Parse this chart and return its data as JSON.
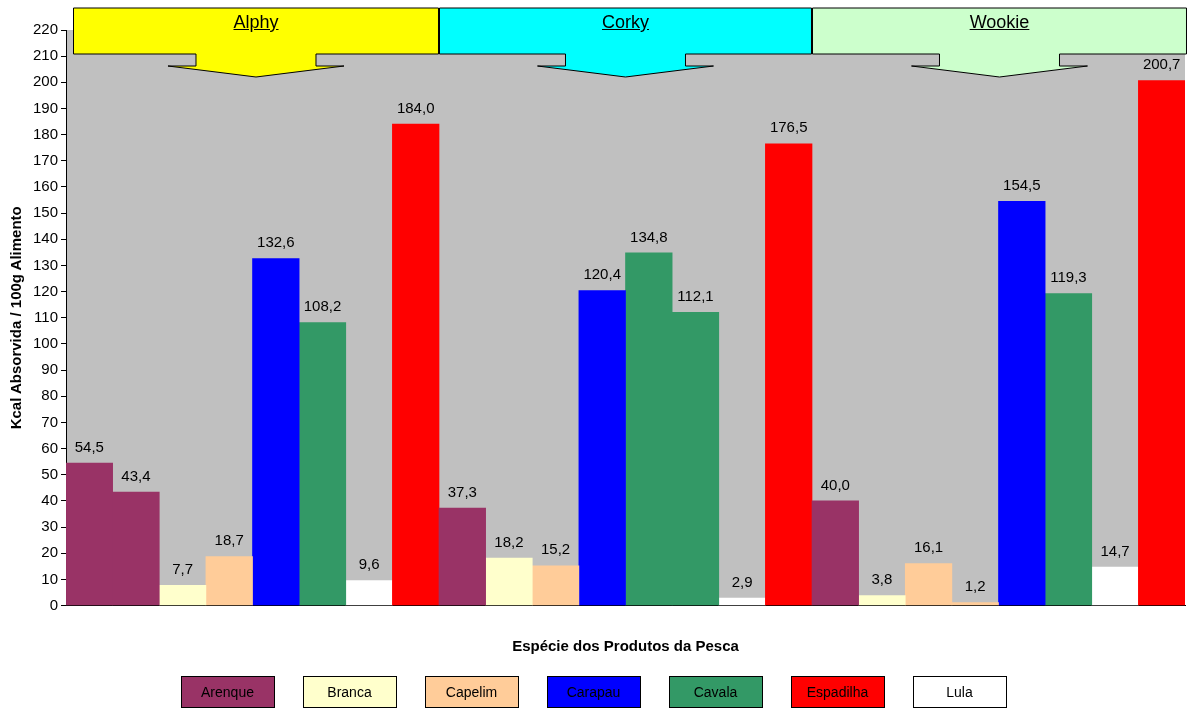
{
  "chart_data": {
    "type": "bar",
    "xlabel": "Espécie dos Produtos da Pesca",
    "ylabel": "Kcal Absorvida / 100g Alimento",
    "annotations": [
      "Alphy",
      "Corky",
      "Wookie"
    ],
    "categories": [
      null,
      null,
      null,
      null,
      null,
      null,
      null,
      null,
      null,
      null,
      null,
      null,
      null,
      null,
      null,
      null,
      null,
      null,
      null,
      null,
      null,
      null,
      null,
      null
    ],
    "series": [
      {
        "name": "Arenque",
        "color": "#993366",
        "values": [
          54.5,
          43.4,
          null,
          null,
          null,
          null,
          null,
          null,
          37.3,
          null,
          null,
          null,
          null,
          null,
          null,
          null,
          40.0,
          null,
          null,
          null,
          null,
          null,
          null,
          null
        ],
        "value_labels": [
          "54,5",
          "43,4",
          null,
          null,
          null,
          null,
          null,
          null,
          "37,3",
          null,
          null,
          null,
          null,
          null,
          null,
          null,
          "40,0",
          null,
          null,
          null,
          null,
          null,
          null,
          null
        ]
      },
      {
        "name": "Branca",
        "color": "#ffffcc",
        "values": [
          null,
          null,
          7.7,
          null,
          null,
          null,
          null,
          null,
          null,
          18.2,
          null,
          null,
          null,
          null,
          null,
          null,
          null,
          3.8,
          null,
          null,
          null,
          null,
          null,
          null
        ],
        "value_labels": [
          null,
          null,
          "7,7",
          null,
          null,
          null,
          null,
          null,
          null,
          "18,2",
          null,
          null,
          null,
          null,
          null,
          null,
          null,
          "3,8",
          null,
          null,
          null,
          null,
          null,
          null
        ]
      },
      {
        "name": "Capelim",
        "color": "#ffcc99",
        "values": [
          null,
          null,
          null,
          18.7,
          null,
          null,
          null,
          null,
          null,
          null,
          15.2,
          null,
          null,
          null,
          null,
          null,
          null,
          null,
          16.1,
          1.2,
          null,
          null,
          null,
          null
        ],
        "value_labels": [
          null,
          null,
          null,
          "18,7",
          null,
          null,
          null,
          null,
          null,
          null,
          "15,2",
          null,
          null,
          null,
          null,
          null,
          null,
          null,
          "16,1",
          "1,2",
          null,
          null,
          null,
          null
        ]
      },
      {
        "name": "Carapau",
        "color": "#0000ff",
        "values": [
          null,
          null,
          null,
          null,
          132.6,
          null,
          null,
          null,
          null,
          null,
          null,
          120.4,
          null,
          null,
          null,
          null,
          null,
          null,
          null,
          null,
          154.5,
          null,
          null,
          null
        ],
        "value_labels": [
          null,
          null,
          null,
          null,
          "132,6",
          null,
          null,
          null,
          null,
          null,
          null,
          "120,4",
          null,
          null,
          null,
          null,
          null,
          null,
          null,
          null,
          "154,5",
          null,
          null,
          null
        ]
      },
      {
        "name": "Cavala",
        "color": "#339966",
        "values": [
          null,
          null,
          null,
          null,
          null,
          108.2,
          null,
          null,
          null,
          null,
          null,
          null,
          134.8,
          112.1,
          null,
          null,
          null,
          null,
          null,
          null,
          null,
          119.3,
          null,
          null
        ],
        "value_labels": [
          null,
          null,
          null,
          null,
          null,
          "108,2",
          null,
          null,
          null,
          null,
          null,
          null,
          "134,8",
          "112,1",
          null,
          null,
          null,
          null,
          null,
          null,
          null,
          "119,3",
          null,
          null
        ]
      },
      {
        "name": "Espadilha",
        "color": "#ff0000",
        "values": [
          null,
          null,
          null,
          null,
          null,
          null,
          null,
          184.0,
          null,
          null,
          null,
          null,
          null,
          null,
          null,
          176.5,
          null,
          null,
          null,
          null,
          null,
          null,
          null,
          200.7
        ],
        "value_labels": [
          null,
          null,
          null,
          null,
          null,
          null,
          null,
          "184,0",
          null,
          null,
          null,
          null,
          null,
          null,
          null,
          "176,5",
          null,
          null,
          null,
          null,
          null,
          null,
          null,
          "200,7"
        ]
      },
      {
        "name": "Lula",
        "color": "#ffffff",
        "values": [
          null,
          null,
          null,
          null,
          null,
          null,
          9.6,
          null,
          null,
          null,
          null,
          null,
          null,
          null,
          2.9,
          null,
          null,
          null,
          null,
          null,
          null,
          null,
          14.7,
          null
        ],
        "value_labels": [
          null,
          null,
          null,
          null,
          null,
          null,
          "9,6",
          null,
          null,
          null,
          null,
          null,
          null,
          null,
          "2,9",
          null,
          null,
          null,
          null,
          null,
          null,
          null,
          "14,7",
          null
        ]
      }
    ],
    "ylim": [
      0,
      220
    ],
    "yticks": [
      0,
      10,
      20,
      30,
      40,
      50,
      60,
      70,
      80,
      90,
      100,
      110,
      120,
      130,
      140,
      150,
      160,
      170,
      180,
      190,
      200,
      210,
      220
    ],
    "grid": false,
    "stacked": true,
    "legend": "bottom"
  }
}
